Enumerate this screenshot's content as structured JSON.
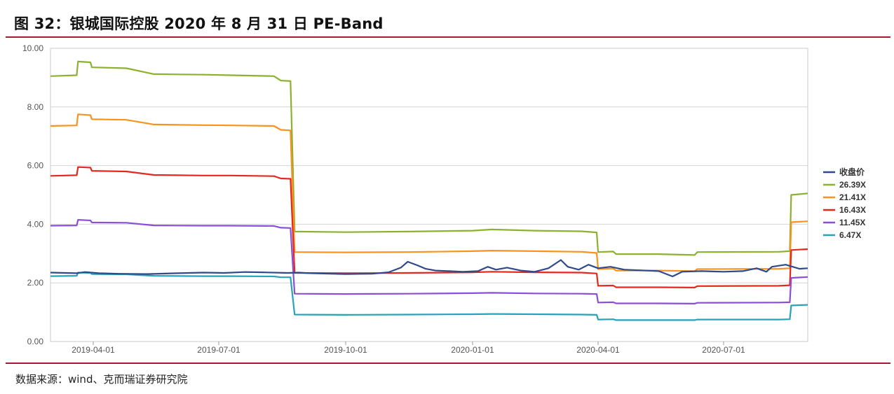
{
  "figure_title": "图 32：银城国际控股 2020 年 8 月 31 日 PE-Band",
  "source": "数据来源：wind、克而瑞证券研究院",
  "chart_data": {
    "type": "line",
    "title": "图 32：银城国际控股 2020 年 8 月 31 日 PE-Band",
    "xlabel": "",
    "ylabel": "",
    "x_range": [
      "2019-03-01",
      "2020-08-31"
    ],
    "ylim": [
      0,
      10
    ],
    "y_ticks": [
      "0.00",
      "2.00",
      "4.00",
      "6.00",
      "8.00",
      "10.00"
    ],
    "x_ticks": [
      "2019-04-01",
      "2019-07-01",
      "2019-10-01",
      "2020-01-01",
      "2020-04-01",
      "2020-07-01"
    ],
    "grid": "horizontal",
    "legend_position": "right",
    "series": [
      {
        "name": "收盘价",
        "color": "#2e4a8a",
        "points": [
          [
            "2019-03-01",
            2.35
          ],
          [
            "2019-03-20",
            2.33
          ],
          [
            "2019-03-26",
            2.37
          ],
          [
            "2019-04-05",
            2.33
          ],
          [
            "2019-04-20",
            2.31
          ],
          [
            "2019-05-10",
            2.3
          ],
          [
            "2019-06-01",
            2.33
          ],
          [
            "2019-06-20",
            2.35
          ],
          [
            "2019-07-05",
            2.34
          ],
          [
            "2019-07-20",
            2.37
          ],
          [
            "2019-08-01",
            2.36
          ],
          [
            "2019-08-20",
            2.34
          ],
          [
            "2019-08-28",
            2.35
          ],
          [
            "2019-09-05",
            2.33
          ],
          [
            "2019-09-20",
            2.31
          ],
          [
            "2019-10-01",
            2.3
          ],
          [
            "2019-10-20",
            2.31
          ],
          [
            "2019-11-01",
            2.36
          ],
          [
            "2019-11-10",
            2.52
          ],
          [
            "2019-11-15",
            2.72
          ],
          [
            "2019-11-22",
            2.6
          ],
          [
            "2019-11-28",
            2.48
          ],
          [
            "2019-12-05",
            2.42
          ],
          [
            "2019-12-15",
            2.4
          ],
          [
            "2019-12-25",
            2.38
          ],
          [
            "2020-01-05",
            2.4
          ],
          [
            "2020-01-12",
            2.55
          ],
          [
            "2020-01-18",
            2.45
          ],
          [
            "2020-01-26",
            2.52
          ],
          [
            "2020-02-05",
            2.42
          ],
          [
            "2020-02-15",
            2.38
          ],
          [
            "2020-02-25",
            2.5
          ],
          [
            "2020-03-05",
            2.78
          ],
          [
            "2020-03-10",
            2.55
          ],
          [
            "2020-03-18",
            2.45
          ],
          [
            "2020-03-25",
            2.62
          ],
          [
            "2020-04-01",
            2.5
          ],
          [
            "2020-04-10",
            2.55
          ],
          [
            "2020-04-20",
            2.45
          ],
          [
            "2020-05-01",
            2.43
          ],
          [
            "2020-05-15",
            2.4
          ],
          [
            "2020-05-25",
            2.22
          ],
          [
            "2020-06-01",
            2.38
          ],
          [
            "2020-06-15",
            2.4
          ],
          [
            "2020-07-01",
            2.38
          ],
          [
            "2020-07-15",
            2.4
          ],
          [
            "2020-07-25",
            2.5
          ],
          [
            "2020-08-01",
            2.38
          ],
          [
            "2020-08-05",
            2.55
          ],
          [
            "2020-08-15",
            2.62
          ],
          [
            "2020-08-25",
            2.48
          ],
          [
            "2020-08-31",
            2.5
          ]
        ]
      },
      {
        "name": "26.39X",
        "color": "#8cb12e",
        "points": [
          [
            "2019-03-01",
            9.05
          ],
          [
            "2019-03-20",
            9.08
          ],
          [
            "2019-03-21",
            9.55
          ],
          [
            "2019-03-30",
            9.52
          ],
          [
            "2019-03-31",
            9.35
          ],
          [
            "2019-04-25",
            9.32
          ],
          [
            "2019-05-15",
            9.12
          ],
          [
            "2019-06-20",
            9.1
          ],
          [
            "2019-07-10",
            9.08
          ],
          [
            "2019-08-10",
            9.05
          ],
          [
            "2019-08-15",
            8.9
          ],
          [
            "2019-08-22",
            8.88
          ],
          [
            "2019-08-25",
            3.75
          ],
          [
            "2019-10-01",
            3.73
          ],
          [
            "2019-11-15",
            3.75
          ],
          [
            "2020-01-01",
            3.78
          ],
          [
            "2020-01-15",
            3.82
          ],
          [
            "2020-02-15",
            3.78
          ],
          [
            "2020-03-20",
            3.76
          ],
          [
            "2020-03-31",
            3.72
          ],
          [
            "2020-04-01",
            3.05
          ],
          [
            "2020-04-12",
            3.07
          ],
          [
            "2020-04-14",
            2.98
          ],
          [
            "2020-05-15",
            2.98
          ],
          [
            "2020-06-10",
            2.95
          ],
          [
            "2020-06-12",
            3.05
          ],
          [
            "2020-08-10",
            3.06
          ],
          [
            "2020-08-18",
            3.08
          ],
          [
            "2020-08-19",
            5.0
          ],
          [
            "2020-08-31",
            5.05
          ]
        ]
      },
      {
        "name": "21.41X",
        "color": "#f7931e",
        "points": [
          [
            "2019-03-01",
            7.35
          ],
          [
            "2019-03-20",
            7.37
          ],
          [
            "2019-03-21",
            7.75
          ],
          [
            "2019-03-30",
            7.72
          ],
          [
            "2019-03-31",
            7.58
          ],
          [
            "2019-04-25",
            7.56
          ],
          [
            "2019-05-15",
            7.4
          ],
          [
            "2019-06-20",
            7.38
          ],
          [
            "2019-07-10",
            7.37
          ],
          [
            "2019-08-10",
            7.35
          ],
          [
            "2019-08-15",
            7.22
          ],
          [
            "2019-08-22",
            7.2
          ],
          [
            "2019-08-25",
            3.05
          ],
          [
            "2019-10-01",
            3.04
          ],
          [
            "2019-11-15",
            3.05
          ],
          [
            "2020-01-01",
            3.08
          ],
          [
            "2020-01-15",
            3.1
          ],
          [
            "2020-02-15",
            3.08
          ],
          [
            "2020-03-20",
            3.06
          ],
          [
            "2020-03-31",
            3.02
          ],
          [
            "2020-04-01",
            2.47
          ],
          [
            "2020-04-12",
            2.49
          ],
          [
            "2020-04-14",
            2.42
          ],
          [
            "2020-05-15",
            2.42
          ],
          [
            "2020-06-10",
            2.4
          ],
          [
            "2020-06-12",
            2.47
          ],
          [
            "2020-08-10",
            2.48
          ],
          [
            "2020-08-18",
            2.5
          ],
          [
            "2020-08-19",
            4.07
          ],
          [
            "2020-08-31",
            4.1
          ]
        ]
      },
      {
        "name": "16.43X",
        "color": "#e3281e",
        "points": [
          [
            "2019-03-01",
            5.65
          ],
          [
            "2019-03-20",
            5.67
          ],
          [
            "2019-03-21",
            5.95
          ],
          [
            "2019-03-30",
            5.93
          ],
          [
            "2019-03-31",
            5.82
          ],
          [
            "2019-04-25",
            5.8
          ],
          [
            "2019-05-15",
            5.68
          ],
          [
            "2019-06-20",
            5.66
          ],
          [
            "2019-07-10",
            5.66
          ],
          [
            "2019-08-10",
            5.64
          ],
          [
            "2019-08-15",
            5.56
          ],
          [
            "2019-08-22",
            5.55
          ],
          [
            "2019-08-25",
            2.34
          ],
          [
            "2019-10-01",
            2.33
          ],
          [
            "2019-11-15",
            2.34
          ],
          [
            "2020-01-01",
            2.36
          ],
          [
            "2020-01-15",
            2.38
          ],
          [
            "2020-02-15",
            2.36
          ],
          [
            "2020-03-20",
            2.35
          ],
          [
            "2020-03-31",
            2.32
          ],
          [
            "2020-04-01",
            1.9
          ],
          [
            "2020-04-12",
            1.91
          ],
          [
            "2020-04-14",
            1.85
          ],
          [
            "2020-05-15",
            1.85
          ],
          [
            "2020-06-10",
            1.84
          ],
          [
            "2020-06-12",
            1.89
          ],
          [
            "2020-08-10",
            1.9
          ],
          [
            "2020-08-18",
            1.92
          ],
          [
            "2020-08-19",
            3.12
          ],
          [
            "2020-08-31",
            3.15
          ]
        ]
      },
      {
        "name": "11.45X",
        "color": "#8a4fd8",
        "points": [
          [
            "2019-03-01",
            3.95
          ],
          [
            "2019-03-20",
            3.96
          ],
          [
            "2019-03-21",
            4.15
          ],
          [
            "2019-03-30",
            4.13
          ],
          [
            "2019-03-31",
            4.06
          ],
          [
            "2019-04-25",
            4.05
          ],
          [
            "2019-05-15",
            3.96
          ],
          [
            "2019-06-20",
            3.95
          ],
          [
            "2019-07-10",
            3.95
          ],
          [
            "2019-08-10",
            3.94
          ],
          [
            "2019-08-15",
            3.88
          ],
          [
            "2019-08-22",
            3.87
          ],
          [
            "2019-08-25",
            1.63
          ],
          [
            "2019-10-01",
            1.62
          ],
          [
            "2019-11-15",
            1.63
          ],
          [
            "2020-01-01",
            1.65
          ],
          [
            "2020-01-15",
            1.66
          ],
          [
            "2020-02-15",
            1.64
          ],
          [
            "2020-03-20",
            1.63
          ],
          [
            "2020-03-31",
            1.62
          ],
          [
            "2020-04-01",
            1.33
          ],
          [
            "2020-04-12",
            1.34
          ],
          [
            "2020-04-14",
            1.3
          ],
          [
            "2020-05-15",
            1.3
          ],
          [
            "2020-06-10",
            1.29
          ],
          [
            "2020-06-12",
            1.32
          ],
          [
            "2020-08-10",
            1.33
          ],
          [
            "2020-08-18",
            1.34
          ],
          [
            "2020-08-19",
            2.17
          ],
          [
            "2020-08-31",
            2.2
          ]
        ]
      },
      {
        "name": "6.47X",
        "color": "#27a3b8",
        "points": [
          [
            "2019-03-01",
            2.23
          ],
          [
            "2019-03-20",
            2.24
          ],
          [
            "2019-03-21",
            2.35
          ],
          [
            "2019-03-30",
            2.34
          ],
          [
            "2019-03-31",
            2.3
          ],
          [
            "2019-04-25",
            2.29
          ],
          [
            "2019-05-15",
            2.24
          ],
          [
            "2019-06-20",
            2.23
          ],
          [
            "2019-07-10",
            2.23
          ],
          [
            "2019-08-10",
            2.22
          ],
          [
            "2019-08-15",
            2.19
          ],
          [
            "2019-08-22",
            2.19
          ],
          [
            "2019-08-25",
            0.92
          ],
          [
            "2019-10-01",
            0.91
          ],
          [
            "2019-11-15",
            0.92
          ],
          [
            "2020-01-01",
            0.93
          ],
          [
            "2020-01-15",
            0.94
          ],
          [
            "2020-02-15",
            0.93
          ],
          [
            "2020-03-20",
            0.92
          ],
          [
            "2020-03-31",
            0.91
          ],
          [
            "2020-04-01",
            0.75
          ],
          [
            "2020-04-12",
            0.76
          ],
          [
            "2020-04-14",
            0.73
          ],
          [
            "2020-05-15",
            0.73
          ],
          [
            "2020-06-10",
            0.73
          ],
          [
            "2020-06-12",
            0.75
          ],
          [
            "2020-08-10",
            0.75
          ],
          [
            "2020-08-18",
            0.76
          ],
          [
            "2020-08-19",
            1.23
          ],
          [
            "2020-08-31",
            1.25
          ]
        ]
      }
    ]
  }
}
